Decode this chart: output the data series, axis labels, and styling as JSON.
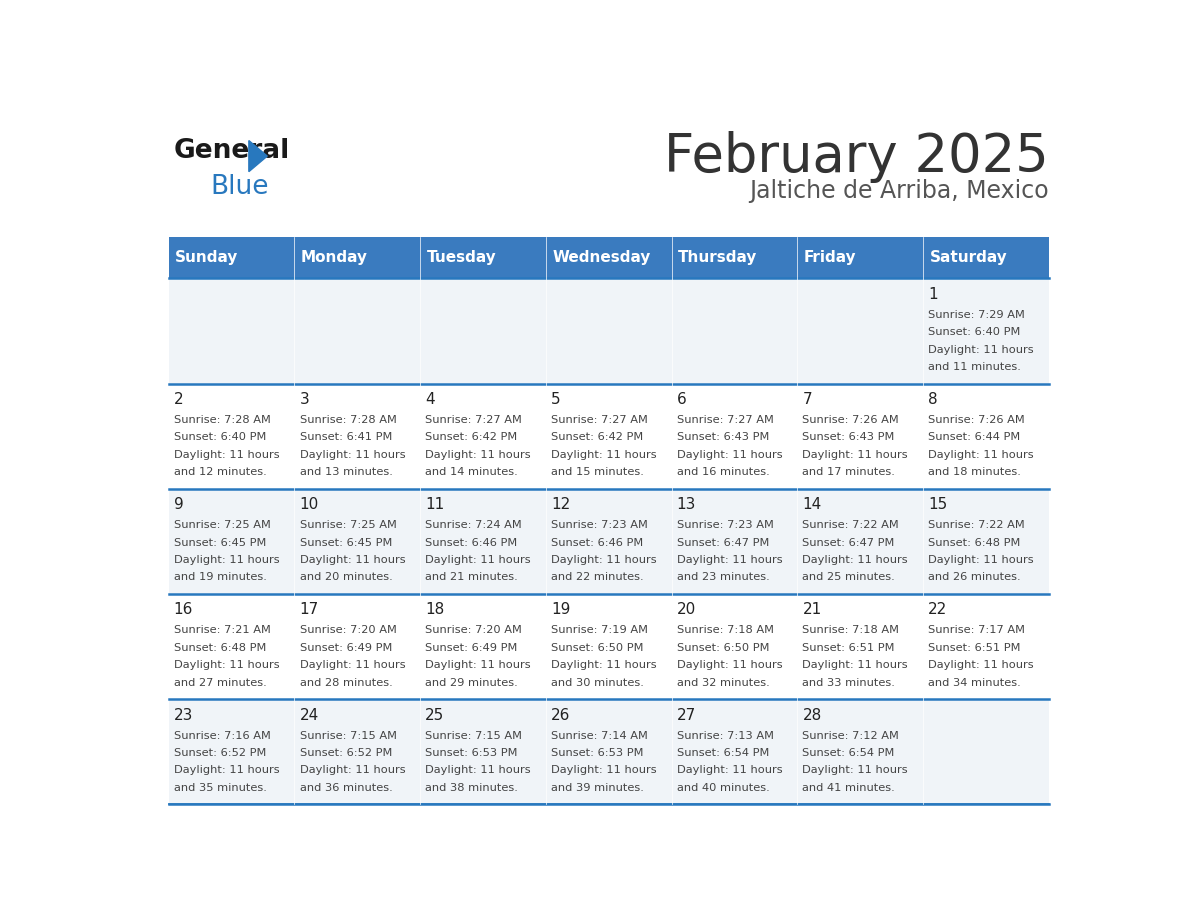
{
  "title": "February 2025",
  "subtitle": "Jaltiche de Arriba, Mexico",
  "header_bg": "#3a7bbf",
  "header_text": "#ffffff",
  "row_bg_odd": "#f0f4f8",
  "row_bg_even": "#ffffff",
  "day_headers": [
    "Sunday",
    "Monday",
    "Tuesday",
    "Wednesday",
    "Thursday",
    "Friday",
    "Saturday"
  ],
  "days": [
    {
      "day": 1,
      "col": 6,
      "row": 0,
      "sunrise": "7:29 AM",
      "sunset": "6:40 PM",
      "daylight": "11 hours and 11 minutes."
    },
    {
      "day": 2,
      "col": 0,
      "row": 1,
      "sunrise": "7:28 AM",
      "sunset": "6:40 PM",
      "daylight": "11 hours and 12 minutes."
    },
    {
      "day": 3,
      "col": 1,
      "row": 1,
      "sunrise": "7:28 AM",
      "sunset": "6:41 PM",
      "daylight": "11 hours and 13 minutes."
    },
    {
      "day": 4,
      "col": 2,
      "row": 1,
      "sunrise": "7:27 AM",
      "sunset": "6:42 PM",
      "daylight": "11 hours and 14 minutes."
    },
    {
      "day": 5,
      "col": 3,
      "row": 1,
      "sunrise": "7:27 AM",
      "sunset": "6:42 PM",
      "daylight": "11 hours and 15 minutes."
    },
    {
      "day": 6,
      "col": 4,
      "row": 1,
      "sunrise": "7:27 AM",
      "sunset": "6:43 PM",
      "daylight": "11 hours and 16 minutes."
    },
    {
      "day": 7,
      "col": 5,
      "row": 1,
      "sunrise": "7:26 AM",
      "sunset": "6:43 PM",
      "daylight": "11 hours and 17 minutes."
    },
    {
      "day": 8,
      "col": 6,
      "row": 1,
      "sunrise": "7:26 AM",
      "sunset": "6:44 PM",
      "daylight": "11 hours and 18 minutes."
    },
    {
      "day": 9,
      "col": 0,
      "row": 2,
      "sunrise": "7:25 AM",
      "sunset": "6:45 PM",
      "daylight": "11 hours and 19 minutes."
    },
    {
      "day": 10,
      "col": 1,
      "row": 2,
      "sunrise": "7:25 AM",
      "sunset": "6:45 PM",
      "daylight": "11 hours and 20 minutes."
    },
    {
      "day": 11,
      "col": 2,
      "row": 2,
      "sunrise": "7:24 AM",
      "sunset": "6:46 PM",
      "daylight": "11 hours and 21 minutes."
    },
    {
      "day": 12,
      "col": 3,
      "row": 2,
      "sunrise": "7:23 AM",
      "sunset": "6:46 PM",
      "daylight": "11 hours and 22 minutes."
    },
    {
      "day": 13,
      "col": 4,
      "row": 2,
      "sunrise": "7:23 AM",
      "sunset": "6:47 PM",
      "daylight": "11 hours and 23 minutes."
    },
    {
      "day": 14,
      "col": 5,
      "row": 2,
      "sunrise": "7:22 AM",
      "sunset": "6:47 PM",
      "daylight": "11 hours and 25 minutes."
    },
    {
      "day": 15,
      "col": 6,
      "row": 2,
      "sunrise": "7:22 AM",
      "sunset": "6:48 PM",
      "daylight": "11 hours and 26 minutes."
    },
    {
      "day": 16,
      "col": 0,
      "row": 3,
      "sunrise": "7:21 AM",
      "sunset": "6:48 PM",
      "daylight": "11 hours and 27 minutes."
    },
    {
      "day": 17,
      "col": 1,
      "row": 3,
      "sunrise": "7:20 AM",
      "sunset": "6:49 PM",
      "daylight": "11 hours and 28 minutes."
    },
    {
      "day": 18,
      "col": 2,
      "row": 3,
      "sunrise": "7:20 AM",
      "sunset": "6:49 PM",
      "daylight": "11 hours and 29 minutes."
    },
    {
      "day": 19,
      "col": 3,
      "row": 3,
      "sunrise": "7:19 AM",
      "sunset": "6:50 PM",
      "daylight": "11 hours and 30 minutes."
    },
    {
      "day": 20,
      "col": 4,
      "row": 3,
      "sunrise": "7:18 AM",
      "sunset": "6:50 PM",
      "daylight": "11 hours and 32 minutes."
    },
    {
      "day": 21,
      "col": 5,
      "row": 3,
      "sunrise": "7:18 AM",
      "sunset": "6:51 PM",
      "daylight": "11 hours and 33 minutes."
    },
    {
      "day": 22,
      "col": 6,
      "row": 3,
      "sunrise": "7:17 AM",
      "sunset": "6:51 PM",
      "daylight": "11 hours and 34 minutes."
    },
    {
      "day": 23,
      "col": 0,
      "row": 4,
      "sunrise": "7:16 AM",
      "sunset": "6:52 PM",
      "daylight": "11 hours and 35 minutes."
    },
    {
      "day": 24,
      "col": 1,
      "row": 4,
      "sunrise": "7:15 AM",
      "sunset": "6:52 PM",
      "daylight": "11 hours and 36 minutes."
    },
    {
      "day": 25,
      "col": 2,
      "row": 4,
      "sunrise": "7:15 AM",
      "sunset": "6:53 PM",
      "daylight": "11 hours and 38 minutes."
    },
    {
      "day": 26,
      "col": 3,
      "row": 4,
      "sunrise": "7:14 AM",
      "sunset": "6:53 PM",
      "daylight": "11 hours and 39 minutes."
    },
    {
      "day": 27,
      "col": 4,
      "row": 4,
      "sunrise": "7:13 AM",
      "sunset": "6:54 PM",
      "daylight": "11 hours and 40 minutes."
    },
    {
      "day": 28,
      "col": 5,
      "row": 4,
      "sunrise": "7:12 AM",
      "sunset": "6:54 PM",
      "daylight": "11 hours and 41 minutes."
    }
  ],
  "num_rows": 5,
  "num_cols": 7,
  "logo_text_general": "General",
  "logo_text_blue": "Blue",
  "logo_triangle_color": "#2878be",
  "text_color_dark": "#222222",
  "cell_text_color": "#444444",
  "divider_color": "#2878be",
  "header_font_size": 11,
  "day_num_font_size": 11,
  "cell_info_font_size": 8.2
}
